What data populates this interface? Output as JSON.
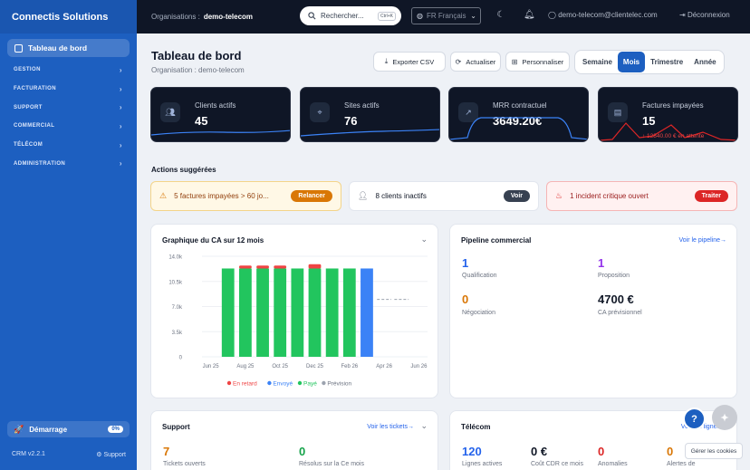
{
  "sidebar": {
    "brand": "Connectis Solutions",
    "active_item": "Tableau de bord",
    "groups": [
      "GESTION",
      "FACTURATION",
      "SUPPORT",
      "COMMERCIAL",
      "TÉLÉCOM",
      "ADMINISTRATION"
    ],
    "start_label": "Démarrage",
    "start_progress": "0%",
    "version": "CRM v2.2.1",
    "support_label": "Support"
  },
  "topbar": {
    "org_label": "Organisations :",
    "org_name": "demo-telecom",
    "search_placeholder": "Rechercher...",
    "search_shortcut": "Ctrl+K",
    "language": "FR Français",
    "user_email": "demo-telecom@clientelec.com",
    "logout_label": "Déconnexion"
  },
  "page": {
    "title": "Tableau de bord",
    "subtitle": "Organisation : demo-telecom",
    "export_label": "Exporter CSV",
    "refresh_label": "Actualiser",
    "customize_label": "Personnaliser",
    "periods": [
      "Semaine",
      "Mois",
      "Trimestre",
      "Année"
    ],
    "active_period": "Mois"
  },
  "kpis": [
    {
      "label": "Clients actifs",
      "value": "45"
    },
    {
      "label": "Sites actifs",
      "value": "76"
    },
    {
      "label": "MRR contractuel",
      "value": "3649.20€"
    },
    {
      "label": "Factures impayées",
      "value": "15",
      "sub": "↑ 12840.00 € en attente"
    }
  ],
  "suggestions": {
    "title": "Actions suggérées",
    "items": [
      {
        "text": "5 factures impayées > 60 jo...",
        "action": "Relancer"
      },
      {
        "text": "8 clients inactifs",
        "action": "Voir"
      },
      {
        "text": "1 incident critique ouvert",
        "action": "Traiter"
      }
    ]
  },
  "revenue_chart": {
    "title": "Graphique du CA sur 12 mois",
    "legend": [
      "En retard",
      "Envoyé",
      "Payé",
      "Prévision"
    ]
  },
  "chart_data": {
    "type": "bar",
    "title": "Graphique du CA sur 12 mois",
    "xlabel": "",
    "ylabel": "",
    "ylim": [
      0,
      14000
    ],
    "yticks": [
      "0",
      "3.5k",
      "7.0k",
      "10.5k",
      "14.0k"
    ],
    "categories": [
      "Jun 25",
      "Jul 25",
      "Aug 25",
      "Sep 25",
      "Oct 25",
      "Nov 25",
      "Dec 25",
      "Jan 26",
      "Feb 26",
      "Mar 26",
      "Apr 26",
      "May 26",
      "Jun 26"
    ],
    "xtick_labels": [
      "Jun 25",
      "Aug 25",
      "Oct 25",
      "Dec 25",
      "Feb 26",
      "Apr 26",
      "Jun 26"
    ],
    "series": [
      {
        "name": "Payé",
        "color": "#22c55e",
        "values": [
          0,
          12300,
          12300,
          12300,
          12300,
          12300,
          12300,
          12300,
          12300,
          0,
          0,
          0,
          0
        ]
      },
      {
        "name": "Envoyé",
        "color": "#3b82f6",
        "values": [
          0,
          0,
          0,
          0,
          0,
          0,
          0,
          0,
          0,
          12300,
          0,
          0,
          0
        ]
      },
      {
        "name": "En retard",
        "color": "#ef4444",
        "values": [
          0,
          0,
          400,
          400,
          400,
          0,
          600,
          0,
          0,
          0,
          0,
          0,
          0
        ]
      },
      {
        "name": "Prévision",
        "color": "#9ca3af",
        "values": [
          null,
          null,
          null,
          null,
          null,
          null,
          null,
          null,
          null,
          null,
          8000,
          8000,
          null
        ]
      }
    ],
    "grid": true,
    "legend_position": "bottom"
  },
  "pipeline": {
    "title": "Pipeline commercial",
    "link": "Voir le pipeline→",
    "stats": [
      {
        "value": "1",
        "label": "Qualification",
        "color": "#2563eb"
      },
      {
        "value": "1",
        "label": "Proposition",
        "color": "#9333ea"
      },
      {
        "value": "0",
        "label": "Négociation",
        "color": "#d97706"
      },
      {
        "value": "4700 €",
        "label": "CA prévisionnel",
        "color": "#111827"
      }
    ]
  },
  "support": {
    "title": "Support",
    "link": "Voir les tickets→",
    "stats": [
      {
        "value": "7",
        "label": "Tickets ouverts",
        "color": "#d97706"
      },
      {
        "value": "0",
        "label": "Résolus sur la Ce mois",
        "color": "#16a34a"
      }
    ]
  },
  "telecom": {
    "title": "Télécom",
    "link": "Voir les lignes→",
    "stats": [
      {
        "value": "120",
        "label": "Lignes actives",
        "color": "#2563eb"
      },
      {
        "value": "0 €",
        "label": "Coût CDR ce mois",
        "color": "#111827"
      },
      {
        "value": "0",
        "label": "Anomalies",
        "color": "#dc2626"
      },
      {
        "value": "0",
        "label": "Alertes de",
        "color": "#d97706"
      }
    ]
  },
  "cookie_label": "Gérer les cookies",
  "colors": {
    "brand": "#1d5fc0",
    "topbar": "#0f1626",
    "accent": "#2563eb"
  }
}
